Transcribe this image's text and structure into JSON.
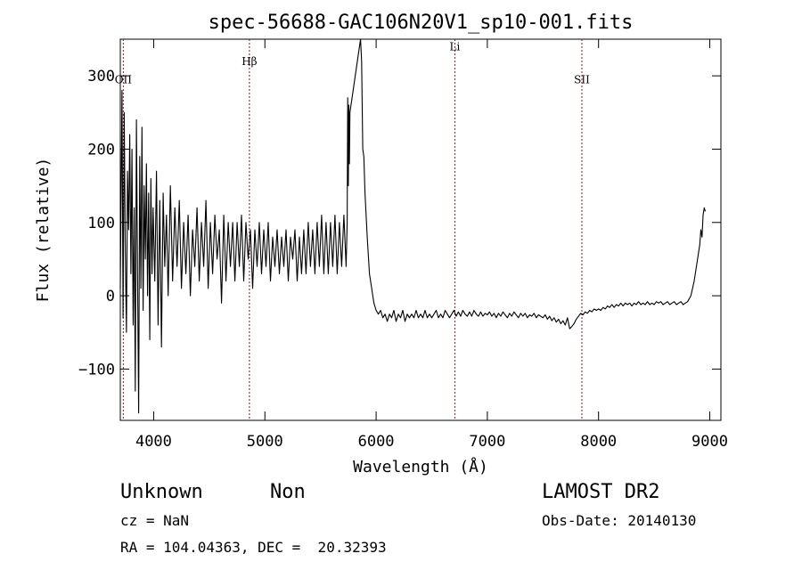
{
  "chart_data": {
    "type": "line",
    "title": "spec-56688-GAC106N20V1_sp10-001.fits",
    "xlabel": "Wavelength (Å)",
    "ylabel": "Flux (relative)",
    "xlim": [
      3700,
      9100
    ],
    "ylim": [
      -170,
      350
    ],
    "xticks": [
      4000,
      5000,
      6000,
      7000,
      8000,
      9000
    ],
    "yticks": [
      -100,
      0,
      100,
      200,
      300
    ],
    "grid": false,
    "series": [
      {
        "color": "#000000",
        "points": [
          [
            3700,
            10
          ],
          [
            3715,
            280
          ],
          [
            3725,
            -30
          ],
          [
            3735,
            250
          ],
          [
            3745,
            60
          ],
          [
            3755,
            -50
          ],
          [
            3765,
            170
          ],
          [
            3775,
            90
          ],
          [
            3785,
            220
          ],
          [
            3795,
            30
          ],
          [
            3805,
            200
          ],
          [
            3815,
            -40
          ],
          [
            3825,
            120
          ],
          [
            3835,
            -130
          ],
          [
            3845,
            240
          ],
          [
            3855,
            40
          ],
          [
            3865,
            -160
          ],
          [
            3875,
            190
          ],
          [
            3885,
            10
          ],
          [
            3895,
            230
          ],
          [
            3905,
            -20
          ],
          [
            3915,
            150
          ],
          [
            3925,
            50
          ],
          [
            3935,
            180
          ],
          [
            3945,
            0
          ],
          [
            3955,
            140
          ],
          [
            3965,
            -60
          ],
          [
            3975,
            160
          ],
          [
            3985,
            30
          ],
          [
            3995,
            120
          ],
          [
            4010,
            20
          ],
          [
            4025,
            170
          ],
          [
            4040,
            -40
          ],
          [
            4055,
            130
          ],
          [
            4070,
            -70
          ],
          [
            4085,
            140
          ],
          [
            4100,
            40
          ],
          [
            4115,
            110
          ],
          [
            4130,
            0
          ],
          [
            4150,
            150
          ],
          [
            4170,
            20
          ],
          [
            4190,
            120
          ],
          [
            4210,
            40
          ],
          [
            4230,
            130
          ],
          [
            4250,
            10
          ],
          [
            4270,
            100
          ],
          [
            4290,
            30
          ],
          [
            4310,
            110
          ],
          [
            4330,
            0
          ],
          [
            4350,
            90
          ],
          [
            4370,
            40
          ],
          [
            4390,
            120
          ],
          [
            4410,
            20
          ],
          [
            4430,
            100
          ],
          [
            4450,
            40
          ],
          [
            4470,
            130
          ],
          [
            4490,
            10
          ],
          [
            4510,
            100
          ],
          [
            4530,
            30
          ],
          [
            4550,
            110
          ],
          [
            4570,
            50
          ],
          [
            4590,
            90
          ],
          [
            4610,
            -10
          ],
          [
            4630,
            110
          ],
          [
            4650,
            20
          ],
          [
            4670,
            100
          ],
          [
            4690,
            40
          ],
          [
            4710,
            100
          ],
          [
            4730,
            20
          ],
          [
            4750,
            100
          ],
          [
            4770,
            40
          ],
          [
            4790,
            110
          ],
          [
            4810,
            20
          ],
          [
            4830,
            100
          ],
          [
            4850,
            50
          ],
          [
            4870,
            90
          ],
          [
            4890,
            10
          ],
          [
            4910,
            90
          ],
          [
            4930,
            40
          ],
          [
            4950,
            100
          ],
          [
            4970,
            30
          ],
          [
            4990,
            90
          ],
          [
            5010,
            40
          ],
          [
            5030,
            100
          ],
          [
            5050,
            20
          ],
          [
            5070,
            80
          ],
          [
            5090,
            40
          ],
          [
            5110,
            90
          ],
          [
            5130,
            30
          ],
          [
            5150,
            80
          ],
          [
            5170,
            40
          ],
          [
            5190,
            90
          ],
          [
            5210,
            20
          ],
          [
            5230,
            80
          ],
          [
            5250,
            50
          ],
          [
            5270,
            90
          ],
          [
            5290,
            20
          ],
          [
            5310,
            80
          ],
          [
            5330,
            30
          ],
          [
            5350,
            90
          ],
          [
            5370,
            30
          ],
          [
            5390,
            100
          ],
          [
            5410,
            40
          ],
          [
            5430,
            90
          ],
          [
            5450,
            30
          ],
          [
            5470,
            100
          ],
          [
            5490,
            40
          ],
          [
            5510,
            110
          ],
          [
            5530,
            30
          ],
          [
            5550,
            100
          ],
          [
            5570,
            30
          ],
          [
            5590,
            100
          ],
          [
            5610,
            40
          ],
          [
            5630,
            110
          ],
          [
            5650,
            30
          ],
          [
            5670,
            100
          ],
          [
            5690,
            40
          ],
          [
            5710,
            110
          ],
          [
            5730,
            40
          ],
          [
            5740,
            100
          ],
          [
            5745,
            270
          ],
          [
            5750,
            150
          ],
          [
            5755,
            260
          ],
          [
            5760,
            180
          ],
          [
            5765,
            250
          ],
          [
            5860,
            350
          ],
          [
            5870,
            320
          ],
          [
            5880,
            200
          ],
          [
            5890,
            190
          ],
          [
            5900,
            140
          ],
          [
            5920,
            80
          ],
          [
            5940,
            30
          ],
          [
            5960,
            10
          ],
          [
            5980,
            -10
          ],
          [
            6000,
            -20
          ],
          [
            6020,
            -25
          ],
          [
            6040,
            -20
          ],
          [
            6060,
            -30
          ],
          [
            6080,
            -25
          ],
          [
            6100,
            -35
          ],
          [
            6120,
            -25
          ],
          [
            6140,
            -30
          ],
          [
            6160,
            -20
          ],
          [
            6180,
            -35
          ],
          [
            6200,
            -25
          ],
          [
            6220,
            -30
          ],
          [
            6240,
            -20
          ],
          [
            6260,
            -35
          ],
          [
            6280,
            -25
          ],
          [
            6300,
            -30
          ],
          [
            6320,
            -25
          ],
          [
            6340,
            -30
          ],
          [
            6360,
            -20
          ],
          [
            6380,
            -30
          ],
          [
            6400,
            -25
          ],
          [
            6420,
            -30
          ],
          [
            6440,
            -20
          ],
          [
            6460,
            -30
          ],
          [
            6480,
            -25
          ],
          [
            6500,
            -30
          ],
          [
            6520,
            -25
          ],
          [
            6540,
            -20
          ],
          [
            6560,
            -30
          ],
          [
            6580,
            -25
          ],
          [
            6600,
            -30
          ],
          [
            6620,
            -20
          ],
          [
            6640,
            -25
          ],
          [
            6660,
            -30
          ],
          [
            6680,
            -25
          ],
          [
            6700,
            -20
          ],
          [
            6720,
            -28
          ],
          [
            6740,
            -22
          ],
          [
            6760,
            -28
          ],
          [
            6780,
            -20
          ],
          [
            6800,
            -25
          ],
          [
            6820,
            -28
          ],
          [
            6840,
            -22
          ],
          [
            6860,
            -28
          ],
          [
            6880,
            -20
          ],
          [
            6900,
            -25
          ],
          [
            6920,
            -28
          ],
          [
            6940,
            -22
          ],
          [
            6960,
            -28
          ],
          [
            6980,
            -24
          ],
          [
            7000,
            -26
          ],
          [
            7020,
            -22
          ],
          [
            7040,
            -28
          ],
          [
            7060,
            -24
          ],
          [
            7080,
            -30
          ],
          [
            7100,
            -24
          ],
          [
            7120,
            -28
          ],
          [
            7140,
            -22
          ],
          [
            7160,
            -26
          ],
          [
            7180,
            -30
          ],
          [
            7200,
            -24
          ],
          [
            7220,
            -28
          ],
          [
            7240,
            -22
          ],
          [
            7260,
            -26
          ],
          [
            7280,
            -30
          ],
          [
            7300,
            -24
          ],
          [
            7320,
            -28
          ],
          [
            7340,
            -24
          ],
          [
            7360,
            -30
          ],
          [
            7380,
            -26
          ],
          [
            7400,
            -28
          ],
          [
            7420,
            -24
          ],
          [
            7440,
            -30
          ],
          [
            7460,
            -26
          ],
          [
            7480,
            -28
          ],
          [
            7500,
            -30
          ],
          [
            7520,
            -26
          ],
          [
            7540,
            -32
          ],
          [
            7560,
            -28
          ],
          [
            7580,
            -34
          ],
          [
            7600,
            -30
          ],
          [
            7620,
            -36
          ],
          [
            7640,
            -32
          ],
          [
            7660,
            -38
          ],
          [
            7680,
            -34
          ],
          [
            7700,
            -40
          ],
          [
            7720,
            -30
          ],
          [
            7740,
            -45
          ],
          [
            7760,
            -42
          ],
          [
            7780,
            -38
          ],
          [
            7800,
            -32
          ],
          [
            7820,
            -28
          ],
          [
            7840,
            -24
          ],
          [
            7860,
            -26
          ],
          [
            7880,
            -22
          ],
          [
            7900,
            -24
          ],
          [
            7920,
            -20
          ],
          [
            7940,
            -22
          ],
          [
            7960,
            -18
          ],
          [
            7980,
            -20
          ],
          [
            8000,
            -18
          ],
          [
            8020,
            -20
          ],
          [
            8040,
            -16
          ],
          [
            8060,
            -18
          ],
          [
            8080,
            -14
          ],
          [
            8100,
            -16
          ],
          [
            8120,
            -12
          ],
          [
            8140,
            -16
          ],
          [
            8160,
            -12
          ],
          [
            8180,
            -14
          ],
          [
            8200,
            -10
          ],
          [
            8220,
            -14
          ],
          [
            8240,
            -10
          ],
          [
            8260,
            -12
          ],
          [
            8280,
            -10
          ],
          [
            8300,
            -14
          ],
          [
            8320,
            -10
          ],
          [
            8340,
            -12
          ],
          [
            8360,
            -8
          ],
          [
            8380,
            -12
          ],
          [
            8400,
            -10
          ],
          [
            8420,
            -12
          ],
          [
            8440,
            -8
          ],
          [
            8460,
            -12
          ],
          [
            8480,
            -10
          ],
          [
            8500,
            -12
          ],
          [
            8520,
            -8
          ],
          [
            8540,
            -10
          ],
          [
            8560,
            -8
          ],
          [
            8580,
            -12
          ],
          [
            8600,
            -10
          ],
          [
            8620,
            -8
          ],
          [
            8640,
            -12
          ],
          [
            8660,
            -10
          ],
          [
            8680,
            -8
          ],
          [
            8700,
            -12
          ],
          [
            8720,
            -10
          ],
          [
            8740,
            -8
          ],
          [
            8760,
            -12
          ],
          [
            8780,
            -10
          ],
          [
            8800,
            -8
          ],
          [
            8830,
            0
          ],
          [
            8860,
            20
          ],
          [
            8890,
            50
          ],
          [
            8910,
            70
          ],
          [
            8920,
            90
          ],
          [
            8930,
            80
          ],
          [
            8940,
            110
          ],
          [
            8950,
            120
          ],
          [
            8960,
            115
          ]
        ]
      }
    ],
    "annotations": [
      {
        "label": "OII",
        "x": 3727,
        "label_y": 290
      },
      {
        "label": "Hβ",
        "x": 4861,
        "label_y": 315
      },
      {
        "label": "Li",
        "x": 6708,
        "label_y": 335
      },
      {
        "label": "SII",
        "x": 7850,
        "label_y": 290
      }
    ],
    "annotation_line_color": "#8b1a1a"
  },
  "footer": {
    "class_label": "Unknown",
    "subclass_label": "Non",
    "cz_text": "cz = NaN",
    "coords_text": "RA = 104.04363, DEC =  20.32393",
    "survey_text": "LAMOST DR2",
    "obs_date_text": "Obs-Date: 20140130"
  }
}
